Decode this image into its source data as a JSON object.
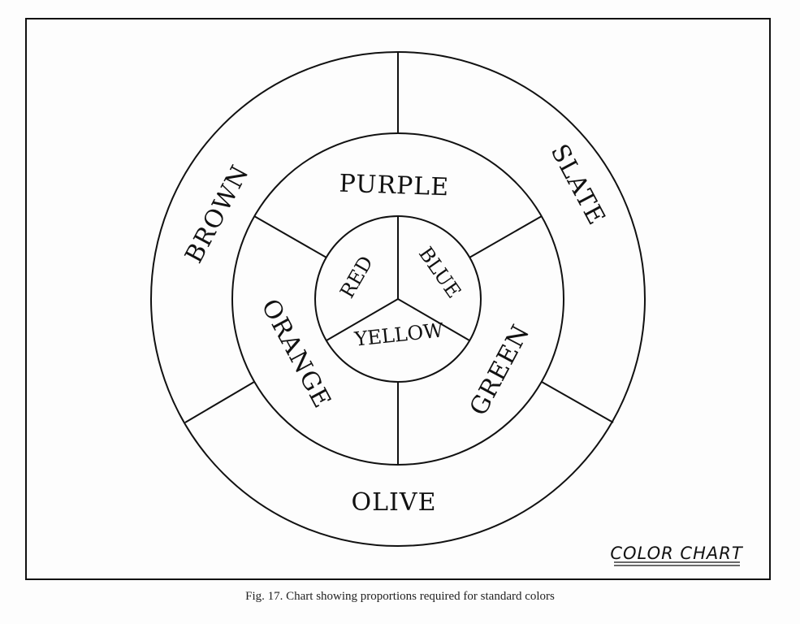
{
  "chart_title": "COLOR CHART",
  "caption": "Fig. 17.  Chart showing proportions required for standard colors",
  "rings": {
    "primary": [
      "RED",
      "BLUE",
      "YELLOW"
    ],
    "secondary": [
      "PURPLE",
      "GREEN",
      "ORANGE"
    ],
    "tertiary": [
      "SLATE",
      "OLIVE",
      "BROWN"
    ]
  }
}
